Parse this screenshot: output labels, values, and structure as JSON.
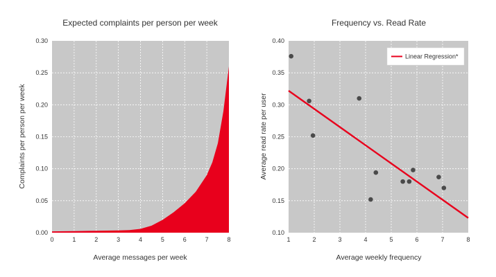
{
  "chart_data": [
    {
      "type": "area",
      "title": "Expected complaints per person per week",
      "xlabel": "Average messages per week",
      "ylabel": "Complaints per person per week",
      "xlim": [
        0,
        8
      ],
      "ylim": [
        0,
        0.3
      ],
      "x_ticks": [
        "0",
        "1",
        "2",
        "3",
        "4",
        "5",
        "6",
        "7",
        "8"
      ],
      "y_ticks": [
        "0.00",
        "0.05",
        "0.10",
        "0.15",
        "0.20",
        "0.25",
        "0.30"
      ],
      "grid": true,
      "background_color": "#c8c8c8",
      "series_color": "#e8001c",
      "x": [
        0,
        1,
        2,
        3,
        3.5,
        4,
        4.5,
        5,
        5.5,
        6,
        6.5,
        7,
        7.25,
        7.5,
        7.75,
        8
      ],
      "y": [
        0.002,
        0.0025,
        0.003,
        0.0035,
        0.004,
        0.006,
        0.011,
        0.02,
        0.032,
        0.046,
        0.064,
        0.09,
        0.11,
        0.14,
        0.19,
        0.26
      ]
    },
    {
      "type": "scatter",
      "title": "Frequency vs. Read Rate",
      "xlabel": "Average weekly frequency",
      "ylabel": "Average read rate per user",
      "xlim": [
        1,
        8
      ],
      "ylim": [
        0.1,
        0.4
      ],
      "x_ticks": [
        "1",
        "2",
        "3",
        "4",
        "5",
        "6",
        "7",
        "8"
      ],
      "y_ticks": [
        "0.10",
        "0.15",
        "0.20",
        "0.25",
        "0.30",
        "0.35",
        "0.40"
      ],
      "grid": true,
      "background_color": "#c8c8c8",
      "point_color": "#4a4a4a",
      "points": [
        {
          "x": 1.1,
          "y": 0.376
        },
        {
          "x": 1.8,
          "y": 0.306
        },
        {
          "x": 1.95,
          "y": 0.252
        },
        {
          "x": 3.75,
          "y": 0.31
        },
        {
          "x": 4.2,
          "y": 0.152
        },
        {
          "x": 4.4,
          "y": 0.194
        },
        {
          "x": 5.45,
          "y": 0.18
        },
        {
          "x": 5.7,
          "y": 0.18
        },
        {
          "x": 5.85,
          "y": 0.198
        },
        {
          "x": 6.85,
          "y": 0.187
        },
        {
          "x": 7.05,
          "y": 0.17
        }
      ],
      "regression": {
        "name": "Linear Regression*",
        "color": "#e8001c",
        "x": [
          1,
          8
        ],
        "y": [
          0.322,
          0.123
        ]
      },
      "legend": {
        "placement": "top-right",
        "entries": [
          "Linear Regression*"
        ]
      }
    }
  ]
}
